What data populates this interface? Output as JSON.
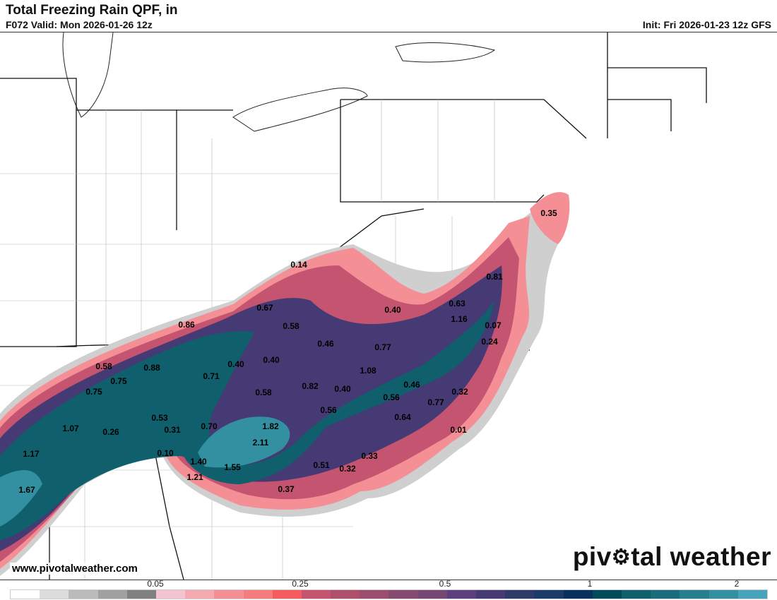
{
  "header": {
    "title": "Total Freezing Rain QPF, in",
    "valid": "F072 Valid: Mon 2026-01-26 12z",
    "init": "Init: Fri 2026-01-23 12z GFS"
  },
  "footer": {
    "site": "www.pivotalweather.com",
    "logo_pre": "piv",
    "logo_post": "tal weather"
  },
  "colorbar": {
    "colors": [
      "#ffffff",
      "#dcdcdc",
      "#bbbbbb",
      "#a0a0a0",
      "#808080",
      "#f2c4cf",
      "#f4a9b0",
      "#f48f96",
      "#f57b7c",
      "#f55a5e",
      "#c55470",
      "#ae4f6c",
      "#9b4d6e",
      "#874a70",
      "#744873",
      "#5c3f7f",
      "#463a74",
      "#2f3a68",
      "#1c3b68",
      "#07305e",
      "#004a5c",
      "#0f5f6c",
      "#1a6d7c",
      "#267f8c",
      "#3290a0",
      "#45a3bc"
    ],
    "ticks": [
      "0.05",
      "0.25",
      "0.5",
      "1",
      "2"
    ]
  },
  "map": {
    "values": [
      "0.35",
      "0.14",
      "0.81",
      "0.67",
      "0.63",
      "0.40",
      "1.16",
      "0.58",
      "0.07",
      "0.86",
      "0.46",
      "0.77",
      "0.24",
      "0.58",
      "0.88",
      "0.40",
      "0.40",
      "0.71",
      "1.08",
      "0.75",
      "0.75",
      "0.82",
      "0.40",
      "0.46",
      "0.58",
      "0.56",
      "0.32",
      "0.53",
      "0.56",
      "0.77",
      "1.07",
      "0.26",
      "0.31",
      "0.70",
      "1.82",
      "0.64",
      "0.01",
      "1.17",
      "0.10",
      "2.11",
      "0.33",
      "1.40",
      "1.55",
      "0.51",
      "0.32",
      "1.21",
      "1.67",
      "0.37"
    ]
  }
}
